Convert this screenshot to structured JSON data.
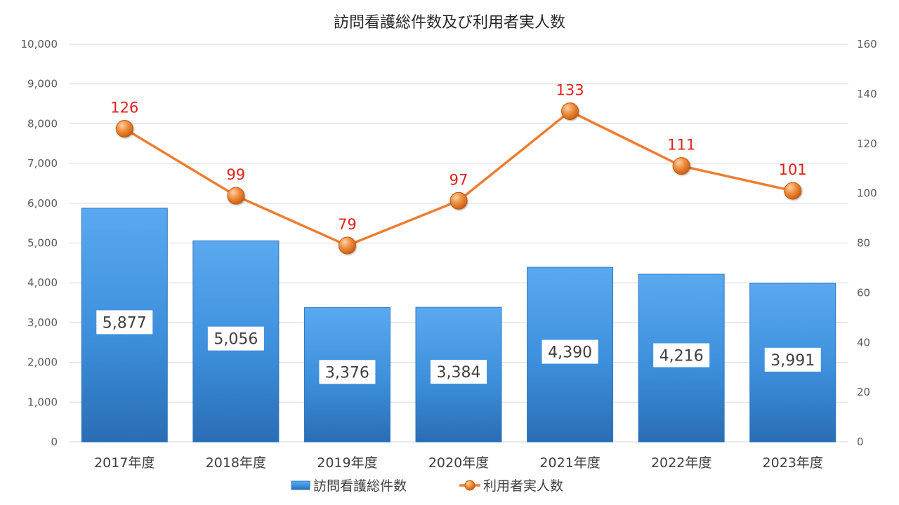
{
  "chart_data": {
    "type": "bar",
    "title": "訪問看護総件数及び利用者実人数",
    "categories": [
      "2017年度",
      "2018年度",
      "2019年度",
      "2020年度",
      "2021年度",
      "2022年度",
      "2023年度"
    ],
    "series": [
      {
        "name": "訪問看護総件数",
        "type": "bar",
        "axis": "left",
        "values": [
          5877,
          5056,
          3376,
          3384,
          4390,
          4216,
          3991
        ],
        "labels": [
          "5,877",
          "5,056",
          "3,376",
          "3,384",
          "4,390",
          "4,216",
          "3,991"
        ],
        "color": "#3d8fdb"
      },
      {
        "name": "利用者実人数",
        "type": "line",
        "axis": "right",
        "values": [
          126,
          99,
          79,
          97,
          133,
          111,
          101
        ],
        "labels": [
          "126",
          "99",
          "79",
          "97",
          "133",
          "111",
          "101"
        ],
        "color": "#ed7d31",
        "label_color": "#e0201b"
      }
    ],
    "y_left": {
      "lim": [
        0,
        10000
      ],
      "ticks": [
        "0",
        "1,000",
        "2,000",
        "3,000",
        "4,000",
        "5,000",
        "6,000",
        "7,000",
        "8,000",
        "9,000",
        "10,000"
      ]
    },
    "y_right": {
      "lim": [
        0,
        160
      ],
      "ticks": [
        "0",
        "20",
        "40",
        "60",
        "80",
        "100",
        "120",
        "140",
        "160"
      ]
    },
    "grid": true,
    "legend_position": "bottom"
  }
}
